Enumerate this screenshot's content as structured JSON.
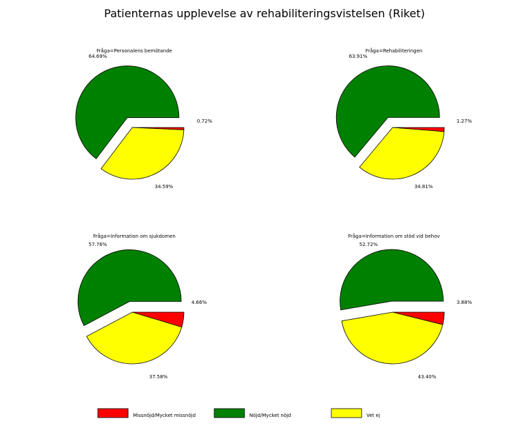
{
  "title": "Patienternas upplevelse av rehabiliteringsvistelsen (Riket)",
  "colors": {
    "Missnöjd/Mycket missnöjd": "#ff0000",
    "Nöjd/Mycket nöjd": "#008000",
    "Vet ej": "#ffff00"
  },
  "chart_data": [
    {
      "type": "pie",
      "title": "Fråga=Personalens bemötande",
      "slices": [
        {
          "label": "Missnöjd/Mycket missnöjd",
          "value": 0.72,
          "text": "0.72%"
        },
        {
          "label": "Vet ej",
          "value": 34.59,
          "text": "34.59%"
        },
        {
          "label": "Nöjd/Mycket nöjd",
          "value": 64.69,
          "text": "64.69%"
        }
      ]
    },
    {
      "type": "pie",
      "title": "Fråga=Rehabiliteringen",
      "slices": [
        {
          "label": "Missnöjd/Mycket missnöjd",
          "value": 1.27,
          "text": "1.27%"
        },
        {
          "label": "Vet ej",
          "value": 34.81,
          "text": "34.81%"
        },
        {
          "label": "Nöjd/Mycket nöjd",
          "value": 63.91,
          "text": "63.91%"
        }
      ]
    },
    {
      "type": "pie",
      "title": "Fråga=Information om sjukdomen",
      "slices": [
        {
          "label": "Missnöjd/Mycket missnöjd",
          "value": 4.66,
          "text": "4.66%"
        },
        {
          "label": "Vet ej",
          "value": 37.58,
          "text": "37.58%"
        },
        {
          "label": "Nöjd/Mycket nöjd",
          "value": 57.76,
          "text": "57.76%"
        }
      ]
    },
    {
      "type": "pie",
      "title": "Fråga=Information om stöd vid behov",
      "slices": [
        {
          "label": "Missnöjd/Mycket missnöjd",
          "value": 3.88,
          "text": "3.88%"
        },
        {
          "label": "Vet ej",
          "value": 43.4,
          "text": "43.40%"
        },
        {
          "label": "Nöjd/Mycket nöjd",
          "value": 52.72,
          "text": "52.72%"
        }
      ]
    }
  ],
  "legend": [
    {
      "label": "Missnöjd/Mycket missnöjd"
    },
    {
      "label": "Nöjd/Mycket nöjd"
    },
    {
      "label": "Vet ej"
    }
  ]
}
